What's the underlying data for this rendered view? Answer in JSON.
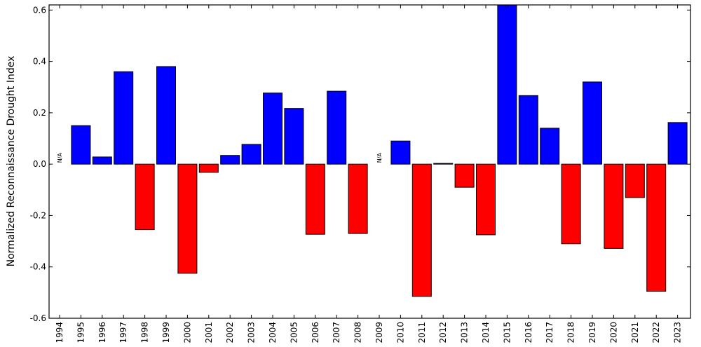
{
  "chart_data": {
    "type": "bar",
    "title": "",
    "xlabel": "",
    "ylabel": "Normalized Reconnaissance Drought Index",
    "ylim": [
      -0.6,
      0.62
    ],
    "yticks": [
      "-0.6",
      "-0.4",
      "-0.2",
      "0.0",
      "0.2",
      "0.4",
      "0.6"
    ],
    "grid": false,
    "legend": "none",
    "colors": {
      "positive": "#0000ff",
      "negative": "#ff0000",
      "edge": "#000000"
    },
    "na_label": "N/A",
    "categories": [
      "1994",
      "1995",
      "1996",
      "1997",
      "1998",
      "1999",
      "2000",
      "2001",
      "2002",
      "2003",
      "2004",
      "2005",
      "2006",
      "2007",
      "2008",
      "2009",
      "2010",
      "2011",
      "2012",
      "2013",
      "2014",
      "2015",
      "2016",
      "2017",
      "2018",
      "2019",
      "2020",
      "2021",
      "2022",
      "2023"
    ],
    "values": [
      null,
      0.15,
      0.028,
      0.36,
      -0.255,
      0.38,
      -0.425,
      -0.032,
      0.034,
      0.077,
      0.277,
      0.217,
      -0.273,
      0.284,
      -0.27,
      null,
      0.09,
      -0.515,
      0.003,
      -0.09,
      -0.275,
      0.62,
      0.267,
      0.14,
      -0.31,
      0.32,
      -0.328,
      -0.13,
      -0.495,
      0.162
    ]
  }
}
